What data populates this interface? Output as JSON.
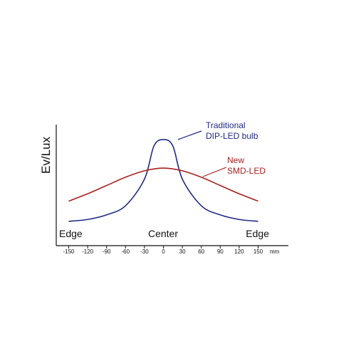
{
  "chart_data": {
    "type": "line",
    "title": "",
    "xlabel": "",
    "ylabel": "Ev/Lux",
    "x_unit": "mm",
    "x": [
      -150,
      -120,
      -90,
      -60,
      -30,
      0,
      30,
      60,
      90,
      120,
      150
    ],
    "tick_labels": [
      "-150",
      "-120",
      "-90",
      "-60",
      "-30",
      "0",
      "30",
      "60",
      "90",
      "120",
      "150"
    ],
    "xlim": [
      -160,
      165
    ],
    "ylim": [
      0,
      100
    ],
    "grid": false,
    "position_labels": {
      "left": "Edge",
      "center": "Center",
      "right": "Edge"
    },
    "series": [
      {
        "name": "Traditional DIP-LED bulb",
        "color": "#1f2a86",
        "x": [
          -150,
          -120,
          -90,
          -60,
          -30,
          -15,
          0,
          15,
          30,
          60,
          90,
          120,
          150
        ],
        "values": [
          4,
          6,
          11,
          21,
          50,
          86,
          93,
          86,
          50,
          21,
          11,
          6,
          4
        ]
      },
      {
        "name": "New SMD-LED",
        "color": "#a8201d",
        "x": [
          -150,
          -120,
          -90,
          -60,
          -30,
          0,
          30,
          60,
          90,
          120,
          150
        ],
        "values": [
          26,
          34,
          43,
          52,
          59,
          62,
          59,
          52,
          43,
          34,
          26
        ]
      }
    ],
    "annotations": [
      {
        "series": 0,
        "lines": [
          "Traditional",
          "DIP-LED bulb"
        ]
      },
      {
        "series": 1,
        "lines": [
          "New",
          "SMD-LED"
        ]
      }
    ]
  }
}
